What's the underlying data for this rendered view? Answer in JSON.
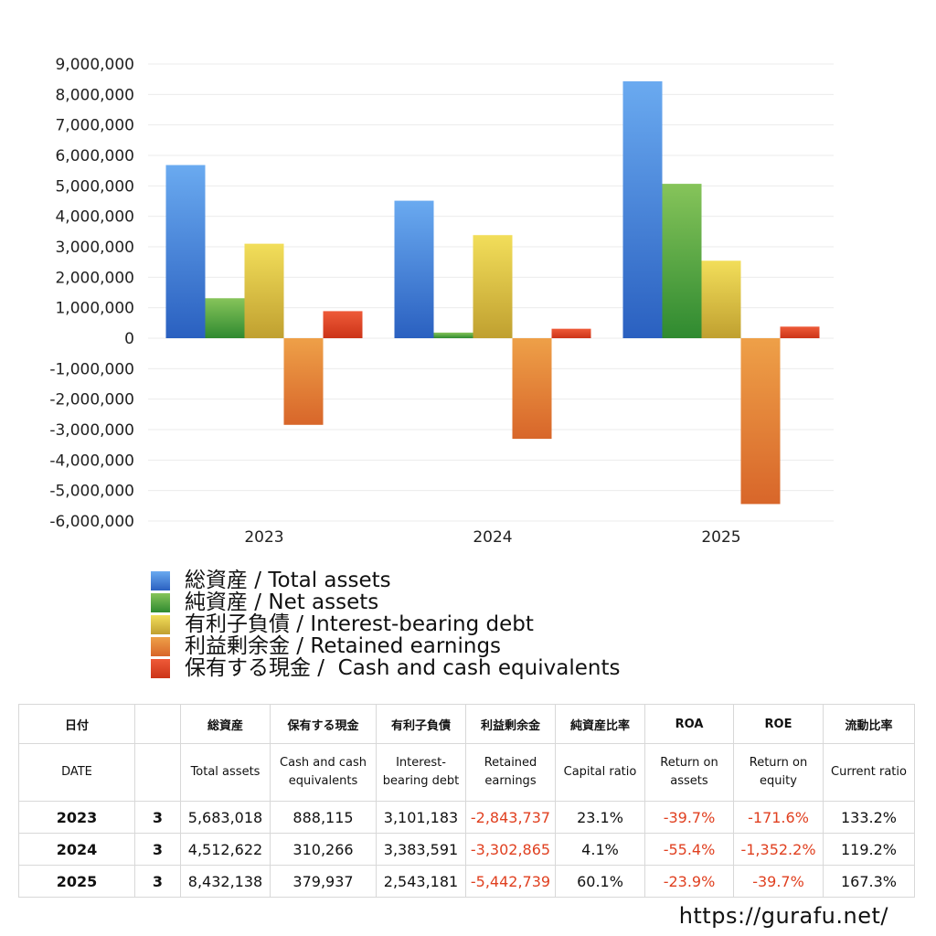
{
  "chart_data": {
    "type": "bar",
    "categories": [
      "2023",
      "2024",
      "2025"
    ],
    "y_ticks": [
      "9,000,000",
      "8,000,000",
      "7,000,000",
      "6,000,000",
      "5,000,000",
      "4,000,000",
      "3,000,000",
      "2,000,000",
      "1,000,000",
      "0",
      "-1,000,000",
      "-2,000,000",
      "-3,000,000",
      "-4,000,000",
      "-5,000,000",
      "-6,000,000"
    ],
    "ylim": [
      -6000000,
      9000000
    ],
    "grid": true,
    "legend_position": "bottom",
    "series": [
      {
        "name": "総資産 / Total assets",
        "values": [
          5683018,
          4512622,
          8432138
        ],
        "color_top": "#6aaaf0",
        "color_bottom": "#2a60c0"
      },
      {
        "name": "純資産 / Net assets",
        "values": [
          1312000,
          185000,
          5067000
        ],
        "color_top": "#86c45a",
        "color_bottom": "#2f8a30"
      },
      {
        "name": "有利子負債 / Interest-bearing debt",
        "values": [
          3101183,
          3383591,
          2543181
        ],
        "color_top": "#f2de5a",
        "color_bottom": "#c0a030"
      },
      {
        "name": "利益剰余金 / Retained earnings",
        "values": [
          -2843737,
          -3302865,
          -5442739
        ],
        "color_top": "#eea048",
        "color_bottom": "#d8662a"
      },
      {
        "name": "保有する現金 /  Cash and cash equivalents",
        "values": [
          888115,
          310266,
          379937
        ],
        "color_top": "#ee5a38",
        "color_bottom": "#cc3418"
      }
    ]
  },
  "table": {
    "headers_jp": [
      "日付",
      "",
      "総資産",
      "保有する現金",
      "有利子負債",
      "利益剰余金",
      "純資産比率",
      "ROA",
      "ROE",
      "流動比率"
    ],
    "headers_en": [
      "DATE",
      "",
      "Total assets",
      "Cash and cash equivalents",
      "Interest-bearing debt",
      "Retained earnings",
      "Capital ratio",
      "Return on assets",
      "Return on equity",
      "Current ratio"
    ],
    "rows": [
      {
        "year": "2023",
        "q": "3",
        "total_assets": "5,683,018",
        "cash": "888,115",
        "debt": "3,101,183",
        "retained": "-2,843,737",
        "capital_ratio": "23.1%",
        "roa": "-39.7%",
        "roe": "-171.6%",
        "current_ratio": "133.2%"
      },
      {
        "year": "2024",
        "q": "3",
        "total_assets": "4,512,622",
        "cash": "310,266",
        "debt": "3,383,591",
        "retained": "-3,302,865",
        "capital_ratio": "4.1%",
        "roa": "-55.4%",
        "roe": "-1,352.2%",
        "current_ratio": "119.2%"
      },
      {
        "year": "2025",
        "q": "3",
        "total_assets": "8,432,138",
        "cash": "379,937",
        "debt": "2,543,181",
        "retained": "-5,442,739",
        "capital_ratio": "60.1%",
        "roa": "-23.9%",
        "roe": "-39.7%",
        "current_ratio": "167.3%"
      }
    ]
  },
  "footer": {
    "url": "https://gurafu.net/"
  }
}
